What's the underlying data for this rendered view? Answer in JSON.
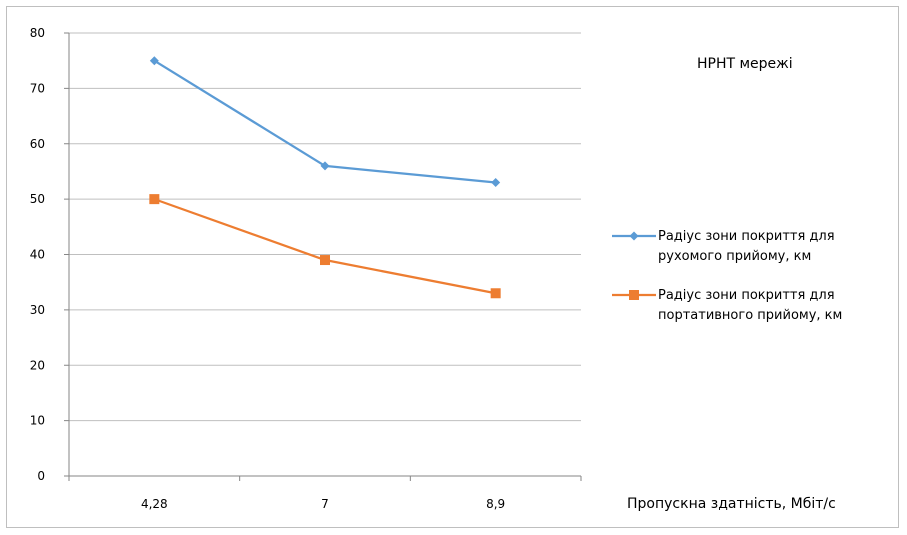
{
  "chart_data": {
    "type": "line",
    "title": "HPHT мережі",
    "xlabel": "Пропускна здатність, Мбіт/с",
    "ylabel": "",
    "categories": [
      "4,28",
      "7",
      "8,9"
    ],
    "ylim": [
      0,
      80
    ],
    "yticks": [
      0,
      10,
      20,
      30,
      40,
      50,
      60,
      70,
      80
    ],
    "grid": "horizontal",
    "legend_position": "right",
    "series": [
      {
        "name_line1": "Радіус зони покриття для",
        "name_line2": "рухомого прийому, км",
        "color": "#5b9bd5",
        "marker": "diamond",
        "values": [
          75,
          56,
          53
        ]
      },
      {
        "name_line1": "Радіус зони покриття для",
        "name_line2": "портативного прийому, км",
        "color": "#ed7d31",
        "marker": "square",
        "values": [
          50,
          39,
          33
        ]
      }
    ]
  }
}
